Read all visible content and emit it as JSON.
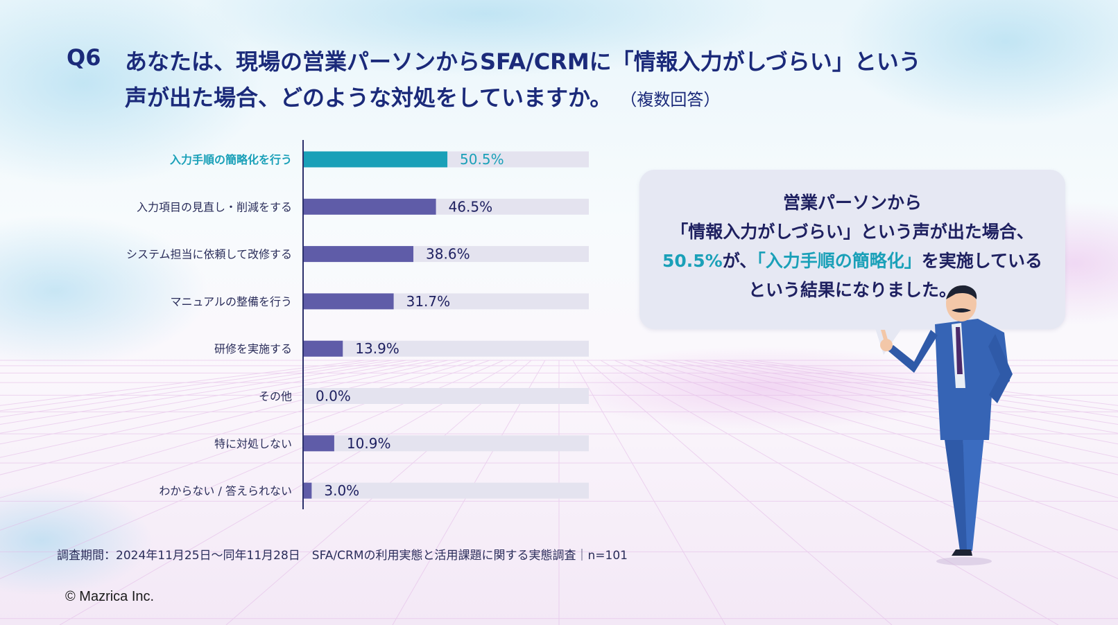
{
  "question": {
    "number": "Q6",
    "line1": "あなたは、現場の営業パーソンからSFA/CRMに「情報入力がしづらい」という",
    "line2": "声が出た場合、どのような対処をしていますか。",
    "note": "（複数回答）"
  },
  "chart_data": {
    "type": "bar",
    "orientation": "horizontal",
    "categories": [
      "入力手順の簡略化を行う",
      "入力項目の見直し・削減をする",
      "システム担当に依頼して改修する",
      "マニュアルの整備を行う",
      "研修を実施する",
      "その他",
      "特に対処しない",
      "わからない / 答えられない"
    ],
    "values": [
      50.5,
      46.5,
      38.6,
      31.7,
      13.9,
      0.0,
      10.9,
      3.0
    ],
    "labels": [
      "50.5%",
      "46.5%",
      "38.6%",
      "31.7%",
      "13.9%",
      "0.0%",
      "10.9%",
      "3.0%"
    ],
    "xlim": [
      0,
      100
    ],
    "highlight_index": 0,
    "colors": {
      "bar": "#5f5ca8",
      "highlight": "#1aa0b8",
      "track": "#e4e3ef",
      "axis": "#2b2f6b"
    }
  },
  "bubble": {
    "line1": "営業パーソンから",
    "line2": "「情報入力がしづらい」という声が出た場合、",
    "line3_pct": "50.5%",
    "line3_mid": "が、",
    "line3_quote": "「入力手順の簡略化」",
    "line3_end": "を実施している",
    "line4": "という結果になりました。"
  },
  "footnote": "調査期間：2024年11月25日〜同年11月28日　SFA/CRMの利用実態と活用課題に関する実態調査｜n=101",
  "copyright": "© Mazrica Inc."
}
